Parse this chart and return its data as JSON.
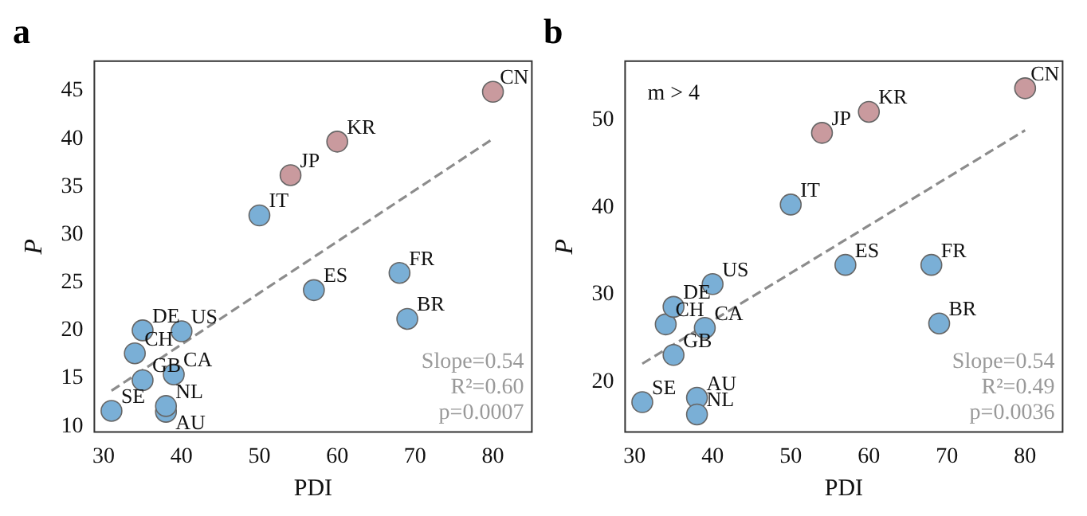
{
  "chart_data": [
    {
      "type": "scatter",
      "title": "a",
      "xlabel": "PDI",
      "ylabel": "P",
      "xlim": [
        28.8,
        85
      ],
      "ylim": [
        9.4,
        48.1
      ],
      "xticks": [
        30,
        40,
        50,
        60,
        70,
        80
      ],
      "yticks": [
        10,
        15,
        20,
        25,
        30,
        35,
        40,
        45
      ],
      "marker": "circle",
      "series": [
        {
          "color": "#7aafd6",
          "x": [
            31,
            38,
            38,
            35,
            39,
            34,
            35,
            40,
            50,
            57,
            68,
            69
          ],
          "values": [
            11.6,
            11.5,
            12.1,
            14.8,
            15.4,
            17.6,
            20,
            19.9,
            32,
            24.2,
            26,
            21.2
          ]
        },
        {
          "color": "#c99a9e",
          "x": [
            54,
            60,
            80
          ],
          "values": [
            36.2,
            39.7,
            44.9
          ]
        },
        {
          "type": "line",
          "line_style": "dashed",
          "marker": "none",
          "color": "#8c8c8c",
          "x": [
            31,
            80
          ],
          "values": [
            13.7,
            40
          ]
        }
      ],
      "annotations": [
        {
          "text": "SE",
          "x": 31,
          "y": 11.6
        },
        {
          "text": "NL",
          "x": 38,
          "y": 12.1
        },
        {
          "text": "AU",
          "x": 38,
          "y": 11.5
        },
        {
          "text": "GB",
          "x": 35,
          "y": 14.8
        },
        {
          "text": "CA",
          "x": 39,
          "y": 15.4
        },
        {
          "text": "CH",
          "x": 34,
          "y": 17.6
        },
        {
          "text": "DE",
          "x": 35,
          "y": 20
        },
        {
          "text": "US",
          "x": 40,
          "y": 19.9
        },
        {
          "text": "IT",
          "x": 50,
          "y": 32
        },
        {
          "text": "ES",
          "x": 57,
          "y": 24.2
        },
        {
          "text": "FR",
          "x": 68,
          "y": 26
        },
        {
          "text": "BR",
          "x": 69,
          "y": 21.2
        },
        {
          "text": "JP",
          "x": 54,
          "y": 36.2
        },
        {
          "text": "KR",
          "x": 60,
          "y": 39.7
        },
        {
          "text": "CN",
          "x": 80,
          "y": 44.9
        },
        "Slope=0.54",
        "R²=0.60",
        "p=0.0007"
      ]
    },
    {
      "type": "scatter",
      "title": "b",
      "subtitle": "m > 4",
      "xlabel": "PDI",
      "ylabel": "P",
      "xlim": [
        28.8,
        84.8
      ],
      "ylim": [
        14.3,
        56.7
      ],
      "xticks": [
        30,
        40,
        50,
        60,
        70,
        80
      ],
      "yticks": [
        20,
        30,
        40,
        50
      ],
      "marker": "circle",
      "series": [
        {
          "color": "#7aafd6",
          "x": [
            31,
            38,
            38,
            35,
            34,
            39,
            35,
            40,
            50,
            57,
            68,
            69
          ],
          "values": [
            17.7,
            18.2,
            16.3,
            23.1,
            26.6,
            26.2,
            28.6,
            31.2,
            40.3,
            33.4,
            33.4,
            26.7
          ]
        },
        {
          "color": "#c99a9e",
          "x": [
            54,
            60,
            80
          ],
          "values": [
            48.5,
            50.9,
            53.6
          ]
        },
        {
          "type": "line",
          "line_style": "dashed",
          "marker": "none",
          "color": "#8c8c8c",
          "x": [
            31,
            80
          ],
          "values": [
            22.1,
            48.8
          ]
        }
      ],
      "annotations": [
        {
          "text": "SE",
          "x": 31,
          "y": 17.7
        },
        {
          "text": "AU",
          "x": 38,
          "y": 18.2
        },
        {
          "text": "NL",
          "x": 38,
          "y": 16.3
        },
        {
          "text": "GB",
          "x": 35,
          "y": 23.1
        },
        {
          "text": "CH",
          "x": 34,
          "y": 26.6
        },
        {
          "text": "CA",
          "x": 39,
          "y": 26.2
        },
        {
          "text": "DE",
          "x": 35,
          "y": 28.6
        },
        {
          "text": "US",
          "x": 40,
          "y": 31.2
        },
        {
          "text": "IT",
          "x": 50,
          "y": 40.3
        },
        {
          "text": "ES",
          "x": 57,
          "y": 33.4
        },
        {
          "text": "FR",
          "x": 68,
          "y": 33.4
        },
        {
          "text": "BR",
          "x": 69,
          "y": 26.7
        },
        {
          "text": "JP",
          "x": 54,
          "y": 48.5
        },
        {
          "text": "KR",
          "x": 60,
          "y": 50.9
        },
        {
          "text": "CN",
          "x": 80,
          "y": 53.6
        },
        "Slope=0.54",
        "R²=0.49",
        "p=0.0036"
      ]
    }
  ]
}
